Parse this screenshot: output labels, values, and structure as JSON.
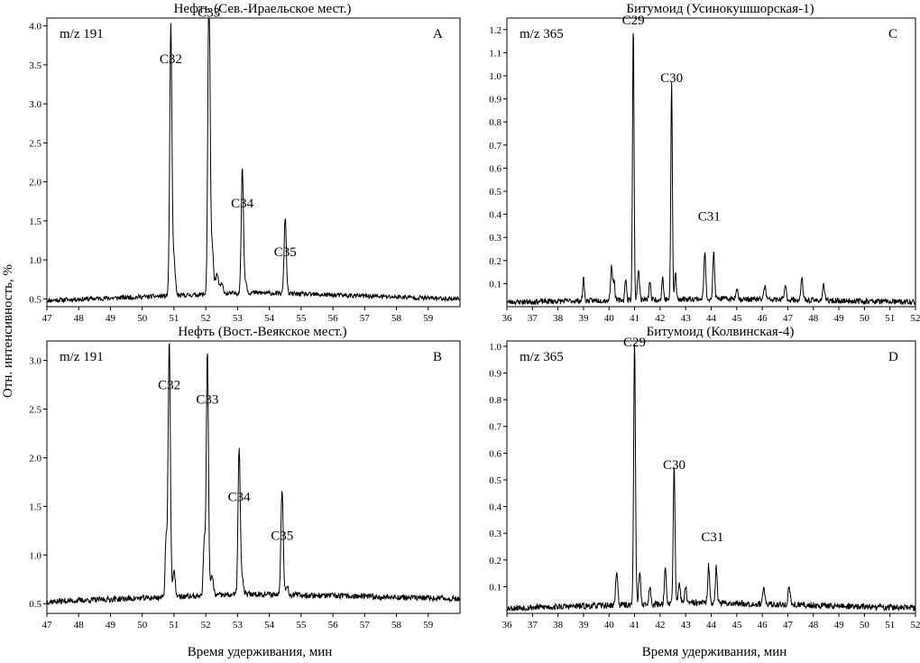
{
  "figure": {
    "y_axis_title": "Отн. интенсивность, %",
    "x_axis_titles": [
      "Время удерживания, мин",
      "Время удерживания, мин"
    ]
  },
  "chart_data": [
    {
      "type": "line",
      "title": "Нефть (Сев.-Ираельское мест.)",
      "ion": "m/z 191",
      "panel_letter": "A",
      "xlim": [
        47,
        60
      ],
      "ylim": [
        0.4,
        4.1
      ],
      "x_ticks": [
        47,
        48,
        49,
        50,
        51,
        52,
        53,
        54,
        55,
        56,
        57,
        58,
        59
      ],
      "y_ticks": [
        0.5,
        1.0,
        1.5,
        2.0,
        2.5,
        3.0,
        3.5,
        4.0
      ],
      "y_tick_labels": [
        "0.5",
        "1.0",
        "1.5",
        "2.0",
        "2.5",
        "3.0",
        "3.5",
        "4.0"
      ],
      "baseline": {
        "start": 0.48,
        "mid": 0.58,
        "end": 0.5,
        "noise": 0.03,
        "seed": 11
      },
      "peaks": [
        {
          "x": 50.9,
          "height": 3.45,
          "width": 0.035
        },
        {
          "x": 51.0,
          "height": 0.45,
          "width": 0.04
        },
        {
          "x": 52.1,
          "height": 4.05,
          "width": 0.035
        },
        {
          "x": 52.2,
          "height": 0.6,
          "width": 0.04
        },
        {
          "x": 52.35,
          "height": 0.25,
          "width": 0.05
        },
        {
          "x": 52.5,
          "height": 0.12,
          "width": 0.05
        },
        {
          "x": 53.15,
          "height": 1.6,
          "width": 0.035
        },
        {
          "x": 53.25,
          "height": 0.15,
          "width": 0.04
        },
        {
          "x": 54.5,
          "height": 0.98,
          "width": 0.035
        }
      ],
      "peak_labels": [
        {
          "text": "C32",
          "x": 50.9,
          "y": 3.45
        },
        {
          "text": "C33",
          "x": 52.1,
          "y": 4.05
        },
        {
          "text": "C34",
          "x": 53.15,
          "y": 1.6
        },
        {
          "text": "C35",
          "x": 54.5,
          "y": 0.98
        }
      ]
    },
    {
      "type": "line",
      "title": "Битумоид (Усинокушшорская-1)",
      "ion": "m/z 365",
      "panel_letter": "C",
      "xlim": [
        36,
        52
      ],
      "ylim": [
        0,
        1.25
      ],
      "x_ticks": [
        36,
        37,
        38,
        39,
        40,
        41,
        42,
        43,
        44,
        45,
        46,
        47,
        48,
        49,
        50,
        51,
        52
      ],
      "y_ticks": [
        0.1,
        0.2,
        0.3,
        0.4,
        0.5,
        0.6,
        0.7,
        0.8,
        0.9,
        1.0,
        1.1,
        1.2
      ],
      "y_tick_labels": [
        "0.1",
        "0.2",
        "0.3",
        "0.4",
        "0.5",
        "0.6",
        "0.7",
        "0.8",
        "0.9",
        "1.0",
        "1.1",
        "1.2"
      ],
      "baseline": {
        "start": 0.02,
        "mid": 0.035,
        "end": 0.02,
        "noise": 0.012,
        "seed": 23
      },
      "peaks": [
        {
          "x": 39.0,
          "height": 0.1,
          "width": 0.03
        },
        {
          "x": 40.1,
          "height": 0.15,
          "width": 0.04
        },
        {
          "x": 40.2,
          "height": 0.08,
          "width": 0.03
        },
        {
          "x": 40.65,
          "height": 0.1,
          "width": 0.03
        },
        {
          "x": 40.95,
          "height": 1.2,
          "width": 0.03
        },
        {
          "x": 41.15,
          "height": 0.13,
          "width": 0.04
        },
        {
          "x": 41.6,
          "height": 0.08,
          "width": 0.03
        },
        {
          "x": 42.1,
          "height": 0.1,
          "width": 0.03
        },
        {
          "x": 42.45,
          "height": 0.95,
          "width": 0.03
        },
        {
          "x": 42.6,
          "height": 0.12,
          "width": 0.03
        },
        {
          "x": 43.75,
          "height": 0.2,
          "width": 0.035
        },
        {
          "x": 44.1,
          "height": 0.2,
          "width": 0.035
        },
        {
          "x": 45.0,
          "height": 0.05,
          "width": 0.04
        },
        {
          "x": 46.1,
          "height": 0.06,
          "width": 0.04
        },
        {
          "x": 46.9,
          "height": 0.06,
          "width": 0.04
        },
        {
          "x": 47.55,
          "height": 0.09,
          "width": 0.04
        },
        {
          "x": 48.4,
          "height": 0.07,
          "width": 0.04
        }
      ],
      "peak_labels": [
        {
          "text": "C29",
          "x": 40.95,
          "y": 1.2
        },
        {
          "text": "C30",
          "x": 42.45,
          "y": 0.95
        },
        {
          "text": "C31",
          "x": 43.92,
          "y": 0.35
        }
      ]
    },
    {
      "type": "line",
      "title": "Нефть (Вост.-Веякское мест.)",
      "ion": "m/z 191",
      "panel_letter": "B",
      "xlim": [
        47,
        60
      ],
      "ylim": [
        0.4,
        3.2
      ],
      "x_ticks": [
        47,
        48,
        49,
        50,
        51,
        52,
        53,
        54,
        55,
        56,
        57,
        58,
        59
      ],
      "y_ticks": [
        0.5,
        1.0,
        1.5,
        2.0,
        2.5,
        3.0
      ],
      "y_tick_labels": [
        "0.5",
        "1.0",
        "1.5",
        "2.0",
        "2.5",
        "3.0"
      ],
      "baseline": {
        "start": 0.52,
        "mid": 0.6,
        "end": 0.55,
        "noise": 0.03,
        "seed": 37
      },
      "peaks": [
        {
          "x": 50.75,
          "height": 0.6,
          "width": 0.03
        },
        {
          "x": 50.85,
          "height": 2.65,
          "width": 0.035
        },
        {
          "x": 51.0,
          "height": 0.25,
          "width": 0.04
        },
        {
          "x": 51.95,
          "height": 0.55,
          "width": 0.03
        },
        {
          "x": 52.05,
          "height": 2.5,
          "width": 0.035
        },
        {
          "x": 52.2,
          "height": 0.2,
          "width": 0.04
        },
        {
          "x": 53.05,
          "height": 1.5,
          "width": 0.035
        },
        {
          "x": 53.15,
          "height": 0.15,
          "width": 0.04
        },
        {
          "x": 54.4,
          "height": 1.1,
          "width": 0.035
        },
        {
          "x": 54.55,
          "height": 0.1,
          "width": 0.04
        }
      ],
      "peak_labels": [
        {
          "text": "C32",
          "x": 50.85,
          "y": 2.65
        },
        {
          "text": "C33",
          "x": 52.05,
          "y": 2.5
        },
        {
          "text": "C34",
          "x": 53.05,
          "y": 1.5
        },
        {
          "text": "C35",
          "x": 54.4,
          "y": 1.1
        }
      ]
    },
    {
      "type": "line",
      "title": "Битумоид (Колвинская-4)",
      "ion": "m/z 365",
      "panel_letter": "D",
      "xlim": [
        36,
        52
      ],
      "ylim": [
        0,
        1.02
      ],
      "x_ticks": [
        36,
        37,
        38,
        39,
        40,
        41,
        42,
        43,
        44,
        45,
        46,
        47,
        48,
        49,
        50,
        51,
        52
      ],
      "y_ticks": [
        0.1,
        0.2,
        0.3,
        0.4,
        0.5,
        0.6,
        0.7,
        0.8,
        0.9,
        1.0
      ],
      "y_tick_labels": [
        "0.1",
        "0.2",
        "0.3",
        "0.4",
        "0.5",
        "0.6",
        "0.7",
        "0.8",
        "0.9",
        "1.0"
      ],
      "baseline": {
        "start": 0.02,
        "mid": 0.04,
        "end": 0.02,
        "noise": 0.012,
        "seed": 53
      },
      "peaks": [
        {
          "x": 40.3,
          "height": 0.13,
          "width": 0.04
        },
        {
          "x": 41.0,
          "height": 0.98,
          "width": 0.035
        },
        {
          "x": 41.2,
          "height": 0.12,
          "width": 0.04
        },
        {
          "x": 41.6,
          "height": 0.06,
          "width": 0.04
        },
        {
          "x": 42.2,
          "height": 0.14,
          "width": 0.035
        },
        {
          "x": 42.55,
          "height": 0.52,
          "width": 0.035
        },
        {
          "x": 42.75,
          "height": 0.08,
          "width": 0.04
        },
        {
          "x": 43.0,
          "height": 0.06,
          "width": 0.04
        },
        {
          "x": 43.9,
          "height": 0.14,
          "width": 0.035
        },
        {
          "x": 44.2,
          "height": 0.14,
          "width": 0.035
        },
        {
          "x": 46.05,
          "height": 0.06,
          "width": 0.04
        },
        {
          "x": 47.05,
          "height": 0.07,
          "width": 0.04
        }
      ],
      "peak_labels": [
        {
          "text": "C29",
          "x": 41.0,
          "y": 0.98
        },
        {
          "text": "C30",
          "x": 42.55,
          "y": 0.52
        },
        {
          "text": "C31",
          "x": 44.05,
          "y": 0.25
        }
      ]
    }
  ]
}
